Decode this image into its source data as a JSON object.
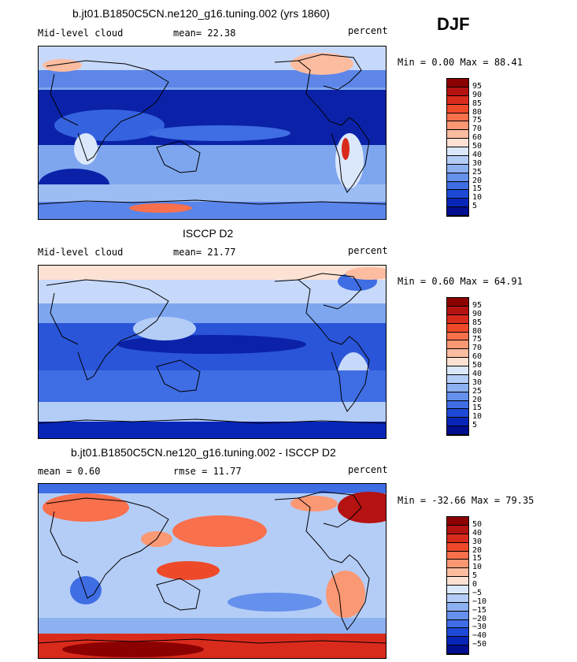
{
  "season": "DJF",
  "panels": [
    {
      "title": "b.jt01.B1850C5CN.ne120_g16.tuning.002 (yrs 1860)",
      "left_label": "Mid-level cloud",
      "stat": "mean=  22.38",
      "units": "percent",
      "minmax": "Min =   0.00 Max =  88.41",
      "colorbar": {
        "labels": [
          "95",
          "90",
          "85",
          "80",
          "75",
          "70",
          "60",
          "50",
          "40",
          "30",
          "25",
          "20",
          "15",
          "10",
          "5"
        ],
        "colors": [
          "#8b0000",
          "#b51212",
          "#d92b1c",
          "#ee4a2a",
          "#f8704c",
          "#fb9874",
          "#fcbca0",
          "#fde1d2",
          "#dbe8fb",
          "#b4cdf7",
          "#8db0f0",
          "#6590eb",
          "#3f6de4",
          "#1c4ad6",
          "#0726b8",
          "#000e8f"
        ]
      }
    },
    {
      "title": "ISCCP D2",
      "left_label": "Mid-level cloud",
      "stat": "mean=  21.77",
      "units": "percent",
      "minmax": "Min =   0.60 Max =  64.91",
      "colorbar": {
        "labels": [
          "95",
          "90",
          "85",
          "80",
          "75",
          "70",
          "60",
          "50",
          "40",
          "30",
          "25",
          "20",
          "15",
          "10",
          "5"
        ],
        "colors": [
          "#8b0000",
          "#b51212",
          "#d92b1c",
          "#ee4a2a",
          "#f8704c",
          "#fb9874",
          "#fcbca0",
          "#fde1d2",
          "#dbe8fb",
          "#b4cdf7",
          "#8db0f0",
          "#6590eb",
          "#3f6de4",
          "#1c4ad6",
          "#0726b8",
          "#000e8f"
        ]
      }
    },
    {
      "title": "b.jt01.B1850C5CN.ne120_g16.tuning.002 - ISCCP D2",
      "left_label": "mean =   0.60",
      "stat": "rmse =  11.77",
      "units": "percent",
      "minmax": "Min = -32.66 Max =  79.35",
      "colorbar": {
        "labels": [
          "50",
          "40",
          "30",
          "20",
          "15",
          "10",
          "5",
          "0",
          "−5",
          "−10",
          "−15",
          "−20",
          "−30",
          "−40",
          "−50"
        ],
        "colors": [
          "#8b0000",
          "#b51212",
          "#d92b1c",
          "#ee4a2a",
          "#f8704c",
          "#fb9874",
          "#fcbca0",
          "#fde1d2",
          "#dbe8fb",
          "#b4cdf7",
          "#8db0f0",
          "#6590eb",
          "#3f6de4",
          "#1c4ad6",
          "#0726b8",
          "#000e8f"
        ]
      }
    }
  ],
  "chart_data": [
    {
      "type": "heatmap",
      "title": "b.jt01.B1850C5CN.ne120_g16.tuning.002 (yrs 1860)",
      "variable": "Mid-level cloud",
      "units": "percent",
      "mean": 22.38,
      "min": 0.0,
      "max": 88.41,
      "contour_levels": [
        5,
        10,
        15,
        20,
        25,
        30,
        40,
        50,
        60,
        70,
        75,
        80,
        85,
        90,
        95
      ]
    },
    {
      "type": "heatmap",
      "title": "ISCCP D2",
      "variable": "Mid-level cloud",
      "units": "percent",
      "mean": 21.77,
      "min": 0.6,
      "max": 64.91,
      "contour_levels": [
        5,
        10,
        15,
        20,
        25,
        30,
        40,
        50,
        60,
        70,
        75,
        80,
        85,
        90,
        95
      ]
    },
    {
      "type": "heatmap",
      "title": "b.jt01.B1850C5CN.ne120_g16.tuning.002 - ISCCP D2",
      "units": "percent",
      "mean": 0.6,
      "rmse": 11.77,
      "min": -32.66,
      "max": 79.35,
      "contour_levels": [
        -50,
        -40,
        -30,
        -20,
        -15,
        -10,
        -5,
        0,
        5,
        10,
        15,
        20,
        30,
        40,
        50
      ]
    }
  ]
}
